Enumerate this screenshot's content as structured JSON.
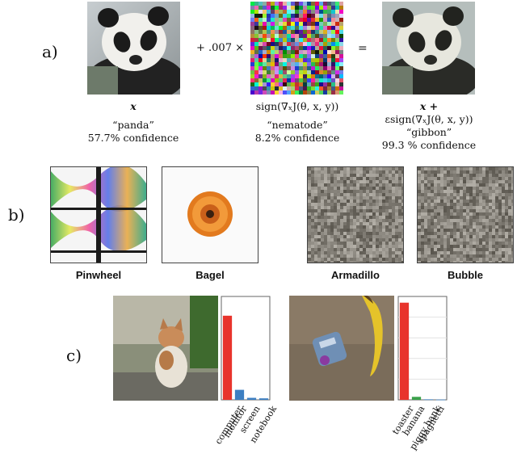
{
  "panels": {
    "a_label": "a)",
    "b_label": "b)",
    "c_label": "c)"
  },
  "row_a": {
    "plus_text": "+ .007 ×",
    "equals_text": "=",
    "captions": [
      {
        "math_line1": "x",
        "label": "“panda”",
        "confidence": "57.7% confidence"
      },
      {
        "math_line1": "sign(∇ₓJ(θ, x, y))",
        "label": "“nematode”",
        "confidence": "8.2% confidence"
      },
      {
        "math_line1": "x +",
        "math_line2": "εsign(∇ₓJ(θ, x, y))",
        "label": "“gibbon”",
        "confidence": "99.3 % confidence"
      }
    ]
  },
  "row_b": {
    "labels": [
      "Pinwheel",
      "Bagel",
      "Armadillo",
      "Bubble"
    ]
  },
  "chart_data": [
    {
      "type": "bar",
      "categories": [
        "computer",
        "monitor",
        "screen",
        "notebook"
      ],
      "values": [
        0.84,
        0.1,
        0.02,
        0.015
      ],
      "colors": [
        "#e8342c",
        "#3d7fc2",
        "#3d7fc2",
        "#3d7fc2"
      ],
      "ylim": [
        0,
        1
      ],
      "grid": false
    },
    {
      "type": "bar",
      "categories": [
        "toaster",
        "banana",
        "piggy bank",
        "spaghetti"
      ],
      "values": [
        0.97,
        0.03,
        0.005,
        0.003
      ],
      "colors": [
        "#e8342c",
        "#3aa14a",
        "#3d7fc2",
        "#3d7fc2"
      ],
      "ylim": [
        0,
        1
      ],
      "grid": true
    }
  ]
}
